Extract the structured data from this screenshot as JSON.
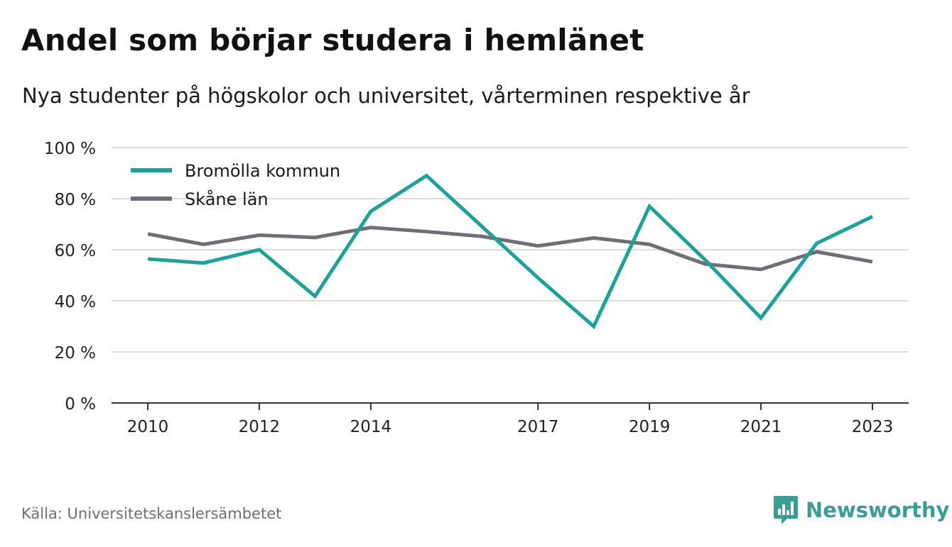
{
  "title": "Andel som börjar studera i hemlänet",
  "subtitle": "Nya studenter på högskolor och universitet, vårterminen respektive år",
  "source": "Källa: Universitetskanslersämbetet",
  "brand": {
    "name": "Newsworthy",
    "icon": "newsworthy-logo-icon"
  },
  "colors": {
    "brand": "#3a9e94",
    "series1": "#1aa39a",
    "series2": "#6e6e76",
    "grid": "#dcdcdc",
    "axis": "#333333"
  },
  "chart_data": {
    "type": "line",
    "x": [
      2010,
      2011,
      2012,
      2013,
      2014,
      2015,
      2016,
      2017,
      2018,
      2019,
      2020,
      2021,
      2022,
      2023
    ],
    "xticks": [
      2010,
      2012,
      2014,
      2017,
      2019,
      2021,
      2023
    ],
    "xtick_labels": [
      "2010",
      "2012",
      "2014",
      "2017",
      "2019",
      "2021",
      "2023"
    ],
    "yticks": [
      0,
      20,
      40,
      60,
      80,
      100
    ],
    "ytick_labels": [
      "0 %",
      "20 %",
      "40 %",
      "60 %",
      "80 %",
      "100 %"
    ],
    "ylim": [
      0,
      100
    ],
    "grid": true,
    "legend": "top-left",
    "series": [
      {
        "name": "Bromölla kommun",
        "color": "#1aa39a",
        "values": [
          56.4,
          54.8,
          60.0,
          41.8,
          75.0,
          89.0,
          69.0,
          49.0,
          30.0,
          77.0,
          56.0,
          33.3,
          62.5,
          73.0
        ]
      },
      {
        "name": "Skåne län",
        "color": "#6e6e76",
        "values": [
          66.2,
          62.1,
          65.7,
          64.8,
          68.7,
          67.1,
          65.2,
          61.5,
          64.6,
          62.1,
          54.4,
          52.3,
          59.2,
          55.3
        ]
      }
    ]
  }
}
